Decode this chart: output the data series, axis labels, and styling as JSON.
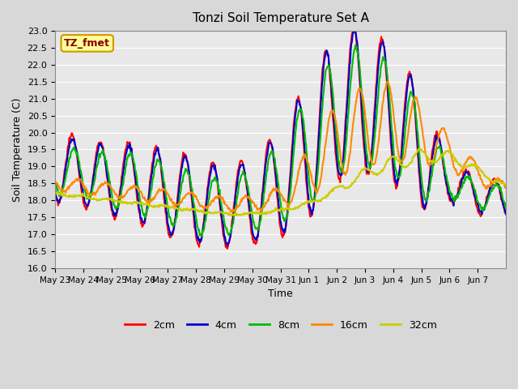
{
  "title": "Tonzi Soil Temperature Set A",
  "xlabel": "Time",
  "ylabel": "Soil Temperature (C)",
  "annotation": "TZ_fmet",
  "annotation_bg": "#FFFF99",
  "annotation_border": "#CC9900",
  "ylim": [
    16.0,
    23.0
  ],
  "yticks": [
    16.0,
    16.5,
    17.0,
    17.5,
    18.0,
    18.5,
    19.0,
    19.5,
    20.0,
    20.5,
    21.0,
    21.5,
    22.0,
    22.5,
    23.0
  ],
  "xtick_labels": [
    "May 23",
    "May 24",
    "May 25",
    "May 26",
    "May 27",
    "May 28",
    "May 29",
    "May 30",
    "May 31",
    "Jun 1",
    "Jun 2",
    "Jun 3",
    "Jun 4",
    "Jun 5",
    "Jun 6",
    "Jun 7"
  ],
  "plot_bg": "#E8E8E8",
  "fig_bg": "#D8D8D8",
  "grid_color": "#FFFFFF",
  "series_colors": {
    "2cm": "#FF0000",
    "4cm": "#0000CC",
    "8cm": "#00BB00",
    "16cm": "#FF8800",
    "32cm": "#CCCC00"
  },
  "linewidth": 1.5,
  "n_days": 16,
  "n_per_day": 48
}
